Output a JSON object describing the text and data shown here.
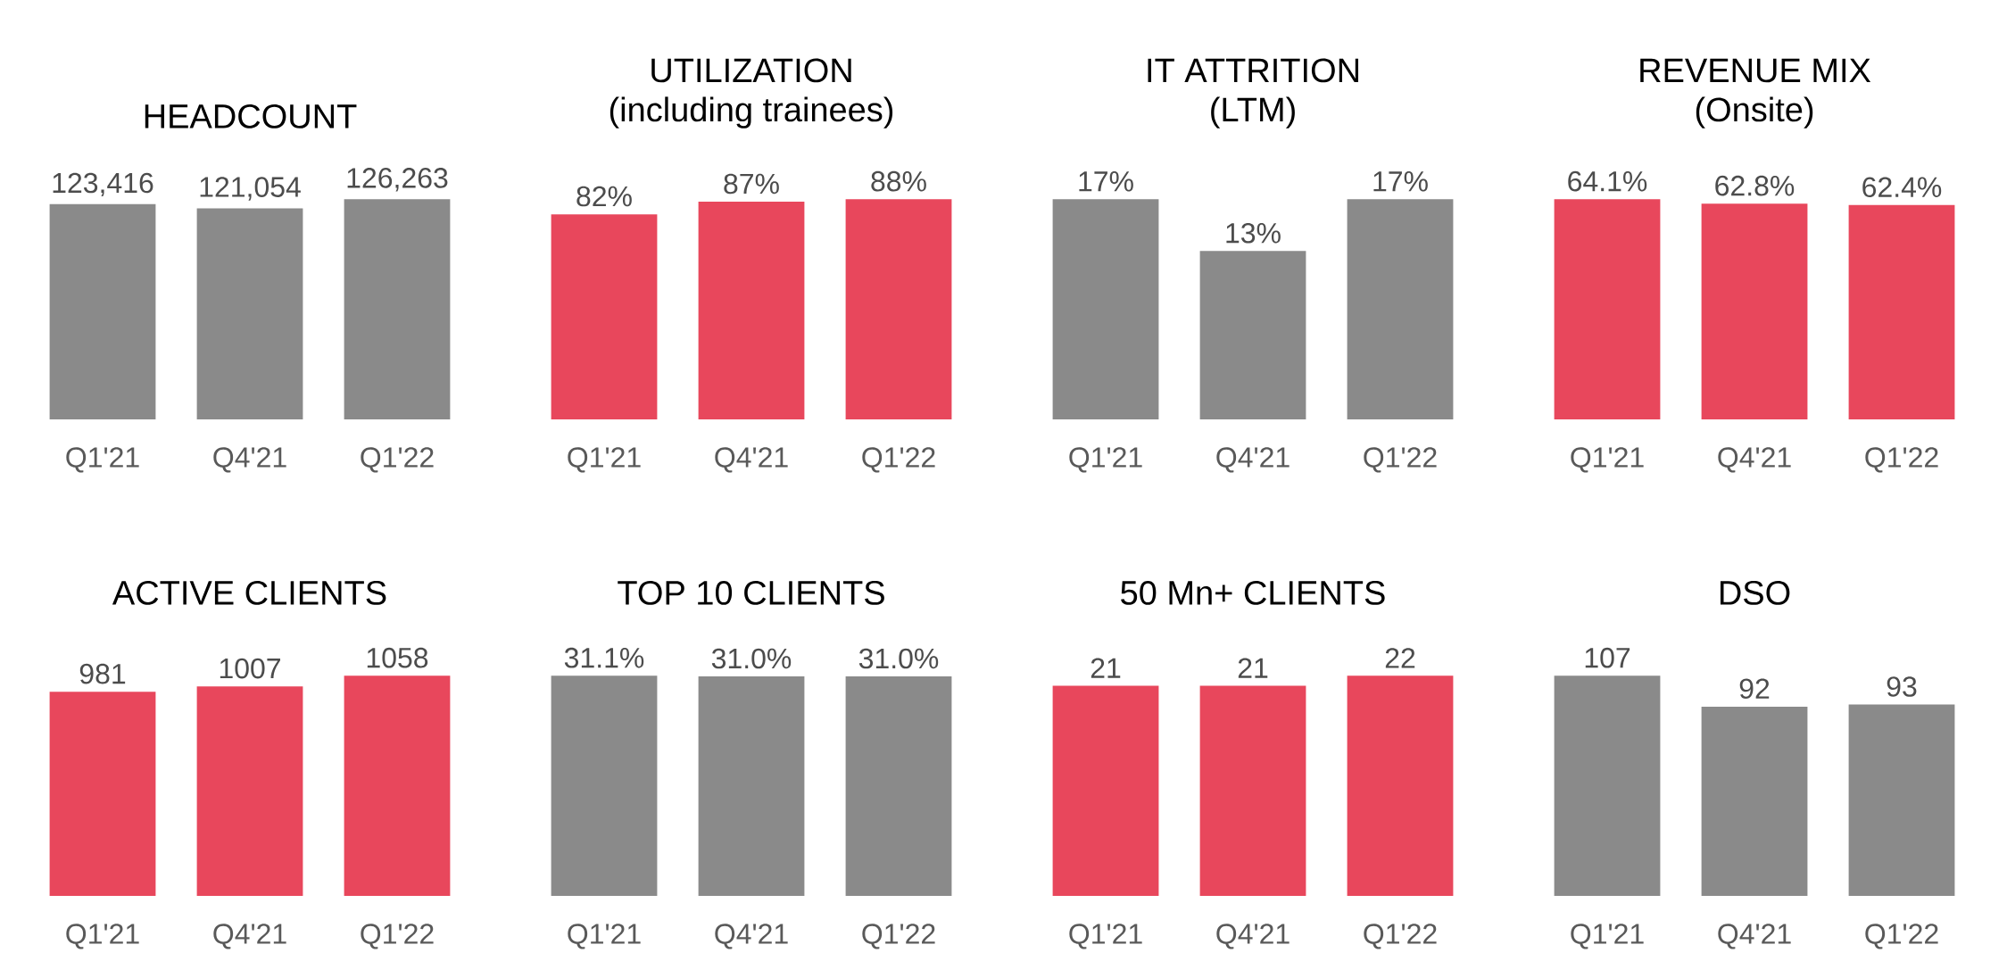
{
  "chart_data": [
    {
      "type": "bar",
      "title": "HEADCOUNT",
      "categories": [
        "Q1'21",
        "Q4'21",
        "Q1'22"
      ],
      "values": [
        123416,
        121054,
        126263
      ],
      "value_labels": [
        "123,416",
        "121,054",
        "126,263"
      ],
      "color": "#8a8a8a"
    },
    {
      "type": "bar",
      "title": "UTILIZATION",
      "subtitle": "(including trainees)",
      "categories": [
        "Q1'21",
        "Q4'21",
        "Q1'22"
      ],
      "values": [
        82,
        87,
        88
      ],
      "value_labels": [
        "82%",
        "87%",
        "88%"
      ],
      "color": "#e8475c"
    },
    {
      "type": "bar",
      "title": "IT ATTRITION",
      "subtitle": "(LTM)",
      "categories": [
        "Q1'21",
        "Q4'21",
        "Q1'22"
      ],
      "values": [
        17,
        13,
        17
      ],
      "value_labels": [
        "17%",
        "13%",
        "17%"
      ],
      "color": "#8a8a8a"
    },
    {
      "type": "bar",
      "title": "REVENUE MIX",
      "subtitle": "(Onsite)",
      "categories": [
        "Q1'21",
        "Q4'21",
        "Q1'22"
      ],
      "values": [
        64.1,
        62.8,
        62.4
      ],
      "value_labels": [
        "64.1%",
        "62.8%",
        "62.4%"
      ],
      "color": "#e8475c"
    },
    {
      "type": "bar",
      "title": "ACTIVE CLIENTS",
      "categories": [
        "Q1'21",
        "Q4'21",
        "Q1'22"
      ],
      "values": [
        981,
        1007,
        1058
      ],
      "value_labels": [
        "981",
        "1007",
        "1058"
      ],
      "color": "#e8475c"
    },
    {
      "type": "bar",
      "title": "TOP 10 CLIENTS",
      "categories": [
        "Q1'21",
        "Q4'21",
        "Q1'22"
      ],
      "values": [
        31.1,
        31.0,
        31.0
      ],
      "value_labels": [
        "31.1%",
        "31.0%",
        "31.0%"
      ],
      "color": "#8a8a8a"
    },
    {
      "type": "bar",
      "title": "50 Mn+ CLIENTS",
      "categories": [
        "Q1'21",
        "Q4'21",
        "Q1'22"
      ],
      "values": [
        21,
        21,
        22
      ],
      "value_labels": [
        "21",
        "21",
        "22"
      ],
      "color": "#e8475c"
    },
    {
      "type": "bar",
      "title": "DSO",
      "categories": [
        "Q1'21",
        "Q4'21",
        "Q1'22"
      ],
      "values": [
        107,
        92,
        93
      ],
      "value_labels": [
        "107",
        "92",
        "93"
      ],
      "color": "#8a8a8a"
    }
  ]
}
